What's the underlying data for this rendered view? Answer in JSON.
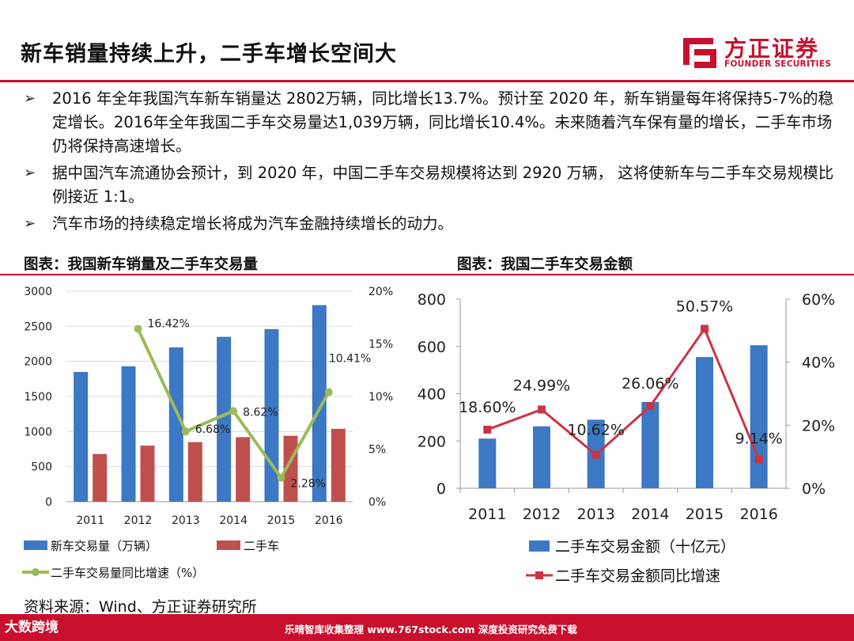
{
  "header": {
    "title": "新车销量持续上升，二手车增长空间大",
    "logo_cn": "方正证券",
    "logo_en": "FOUNDER SECURITIES"
  },
  "bullets": [
    {
      "mark": "➢",
      "text": "2016 年全年我国汽车新车销量达 2802万辆，同比增长13.7%。预计至 2020 年，新车销量每年将保持5-7%的稳定增长。2016年全年我国二手车交易量达1,039万辆，同比增长10.4%。未来随着汽车保有量的增长，二手车市场仍将保持高速增长。"
    },
    {
      "mark": "➢",
      "text": "据中国汽车流通协会预计，到 2020 年，中国二手车交易规模将达到 2920 万辆， 这将使新车与二手车交易规模比例接近 1:1。"
    },
    {
      "mark": "➢",
      "text": "汽车市场的持续稳定增长将成为汽车金融持续增长的动力。"
    }
  ],
  "chart_titles": {
    "left": "图表：我国新车销量及二手车交易量",
    "right": "图表：我国二手车交易金额"
  },
  "source": "资料来源：Wind、方正证券研究所",
  "footer": {
    "left": "大数跨境",
    "center": "乐晴智库收集整理 www.767stock.com 深度投资研究免费下载"
  },
  "colors": {
    "accent": "#c8102e",
    "blue": "#3c78c3",
    "red": "#c0504d",
    "green": "#9bbb59",
    "crimson": "#cc3344"
  },
  "chart_data": [
    {
      "type": "bar",
      "title": "图表：我国新车销量及二手车交易量",
      "categories": [
        "2011",
        "2012",
        "2013",
        "2014",
        "2015",
        "2016"
      ],
      "series": [
        {
          "name": "新车交易量（万辆）",
          "kind": "bar",
          "axis": "left",
          "values": [
            1850,
            1930,
            2200,
            2350,
            2460,
            2802
          ]
        },
        {
          "name": "二手车",
          "kind": "bar",
          "axis": "left",
          "values": [
            680,
            800,
            850,
            920,
            940,
            1039
          ]
        },
        {
          "name": "二手车交易量同比增速（%）",
          "kind": "line",
          "axis": "right",
          "values": [
            null,
            16.42,
            6.68,
            8.62,
            2.28,
            10.41
          ],
          "labels": [
            "",
            "16.42%",
            "6.68%",
            "8.62%",
            "2.28%",
            "10.41%"
          ]
        }
      ],
      "y_left": {
        "min": 0,
        "max": 3000,
        "ticks": [
          "0",
          "500",
          "1000",
          "1500",
          "2000",
          "2500",
          "3000"
        ]
      },
      "y_right": {
        "min": 0,
        "max": 20,
        "ticks": [
          "0%",
          "5%",
          "10%",
          "15%",
          "20%"
        ]
      },
      "legend": [
        "新车交易量（万辆）",
        "二手车",
        "二手车交易量同比增速（%）"
      ]
    },
    {
      "type": "bar",
      "title": "图表：我国二手车交易金额",
      "categories": [
        "2011",
        "2012",
        "2013",
        "2014",
        "2015",
        "2016"
      ],
      "series": [
        {
          "name": "二手车交易金额（十亿元）",
          "kind": "bar",
          "axis": "left",
          "values": [
            210,
            262,
            290,
            365,
            555,
            605
          ]
        },
        {
          "name": "二手车交易金额同比增速",
          "kind": "line",
          "axis": "right",
          "values": [
            18.6,
            24.99,
            10.62,
            26.06,
            50.57,
            9.14
          ],
          "labels": [
            "18.60%",
            "24.99%",
            "10.62%",
            "26.06%",
            "50.57%",
            "9.14%"
          ]
        }
      ],
      "y_left": {
        "min": 0,
        "max": 800,
        "ticks": [
          "0",
          "200",
          "400",
          "600",
          "800"
        ]
      },
      "y_right": {
        "min": 0,
        "max": 60,
        "ticks": [
          "0%",
          "20%",
          "40%",
          "60%"
        ]
      },
      "legend": [
        "二手车交易金额（十亿元）",
        "二手车交易金额同比增速"
      ]
    }
  ]
}
